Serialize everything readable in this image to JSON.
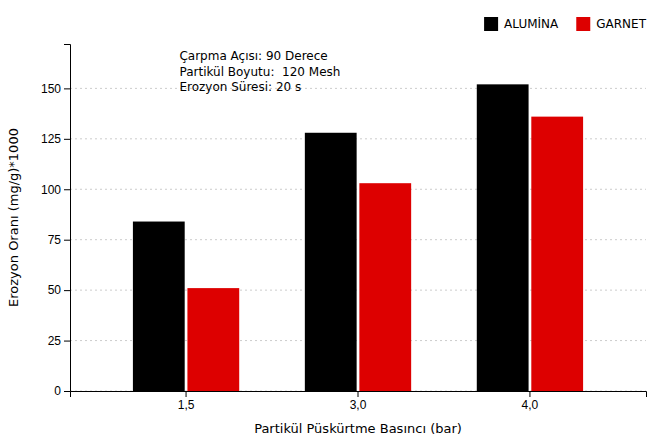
{
  "chart_data": {
    "type": "bar",
    "categories": [
      "1,5",
      "3,0",
      "4,0"
    ],
    "series": [
      {
        "name": "ALUMİNA",
        "color": "#000000",
        "values": [
          84,
          128,
          152
        ]
      },
      {
        "name": "GARNET",
        "color": "#dd0000",
        "values": [
          51,
          103,
          136
        ]
      }
    ],
    "x_label": "Partikül Püskürtme Basıncı (bar)",
    "y_label": "Erozyon Oranı (mg/g)*1000",
    "ylim": [
      0,
      172
    ],
    "yticks": [
      0,
      25,
      50,
      75,
      100,
      125,
      150
    ],
    "annotations": [
      "Çarpma Açısı: 90 Derece",
      "Partikül Boyutu:  120 Mesh",
      "Erozyon Süresi: 20 s"
    ],
    "grid": true,
    "legend": "upper right"
  }
}
